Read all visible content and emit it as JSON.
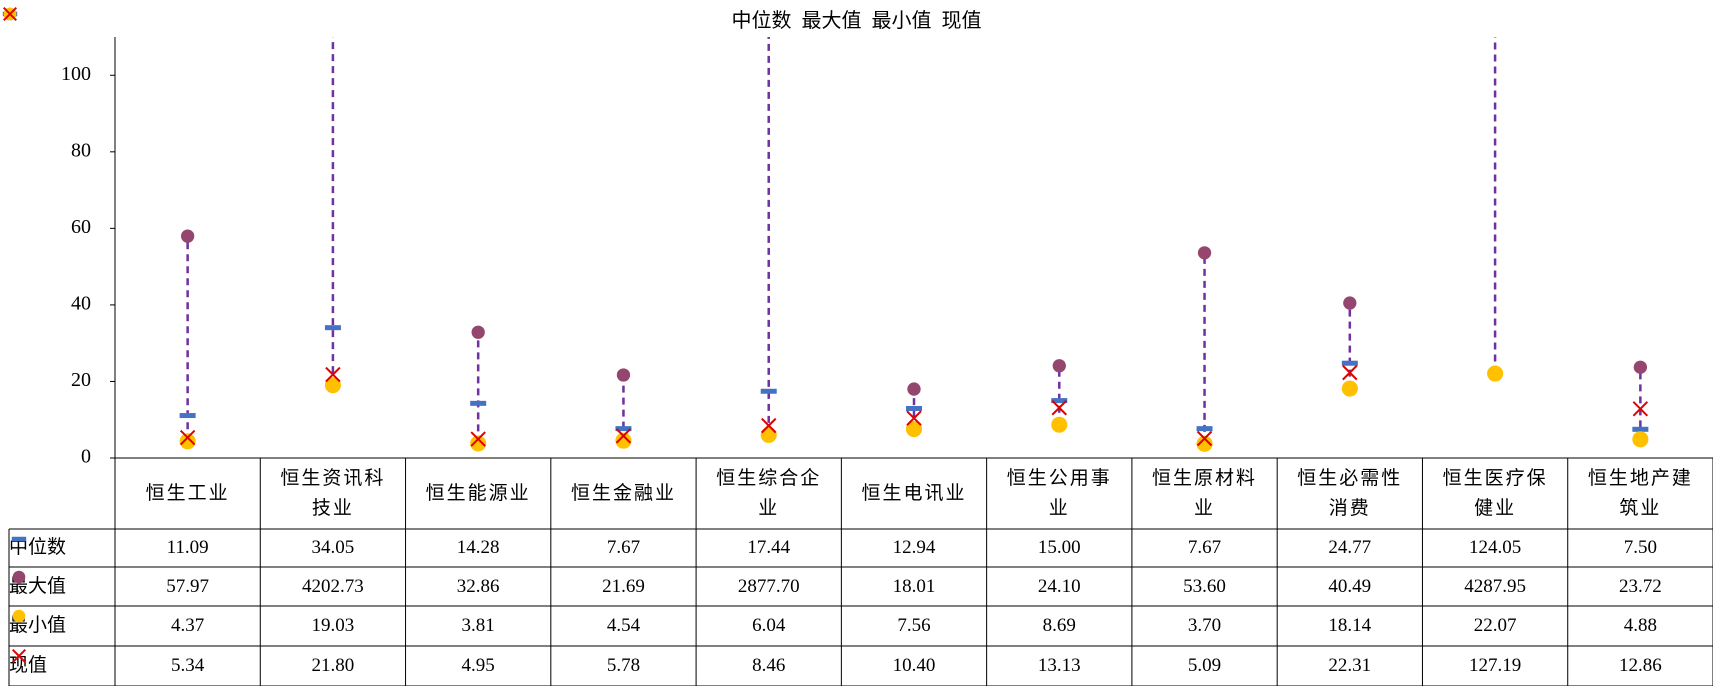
{
  "chart_data": {
    "type": "dot",
    "categories": [
      "恒生工业",
      "恒生资讯科技业",
      "恒生能源业",
      "恒生金融业",
      "恒生综合企业",
      "恒生电讯业",
      "恒生公用事业",
      "恒生原材料业",
      "恒生必需性消费",
      "恒生医疗保健业",
      "恒生地产建筑业"
    ],
    "series": [
      {
        "name": "中位数",
        "color": "#4472c4",
        "marker": "dash",
        "values": [
          11.09,
          34.05,
          14.28,
          7.67,
          17.44,
          12.94,
          15.0,
          7.67,
          24.77,
          124.05,
          7.5
        ],
        "value_labels": [
          "11.09",
          "34.05",
          "14.28",
          "7.67",
          "17.44",
          "12.94",
          "15.00",
          "7.67",
          "24.77",
          "124.05",
          "7.50"
        ]
      },
      {
        "name": "最大值",
        "color": "#94466f",
        "marker": "circle",
        "values": [
          57.97,
          4202.73,
          32.86,
          21.69,
          2877.7,
          18.01,
          24.1,
          53.6,
          40.49,
          4287.95,
          23.72
        ],
        "value_labels": [
          "57.97",
          "4202.73",
          "32.86",
          "21.69",
          "2877.70",
          "18.01",
          "24.10",
          "53.60",
          "40.49",
          "4287.95",
          "23.72"
        ]
      },
      {
        "name": "最小值",
        "color": "#ffc000",
        "marker": "circle",
        "values": [
          4.37,
          19.03,
          3.81,
          4.54,
          6.04,
          7.56,
          8.69,
          3.7,
          18.14,
          22.07,
          4.88
        ],
        "value_labels": [
          "4.37",
          "19.03",
          "3.81",
          "4.54",
          "6.04",
          "7.56",
          "8.69",
          "3.70",
          "18.14",
          "22.07",
          "4.88"
        ]
      },
      {
        "name": "现值",
        "color": "#e00000",
        "marker": "cross",
        "values": [
          5.34,
          21.8,
          4.95,
          5.78,
          8.46,
          10.4,
          13.13,
          5.09,
          22.31,
          127.19,
          12.86
        ],
        "value_labels": [
          "5.34",
          "21.80",
          "4.95",
          "5.78",
          "8.46",
          "10.40",
          "13.13",
          "5.09",
          "22.31",
          "127.19",
          "12.86"
        ]
      }
    ],
    "range_color": "#7030a0",
    "ylim": [
      0,
      110
    ],
    "yticks": [
      0,
      20,
      40,
      60,
      80,
      100
    ],
    "grid": false,
    "legend": "top"
  }
}
